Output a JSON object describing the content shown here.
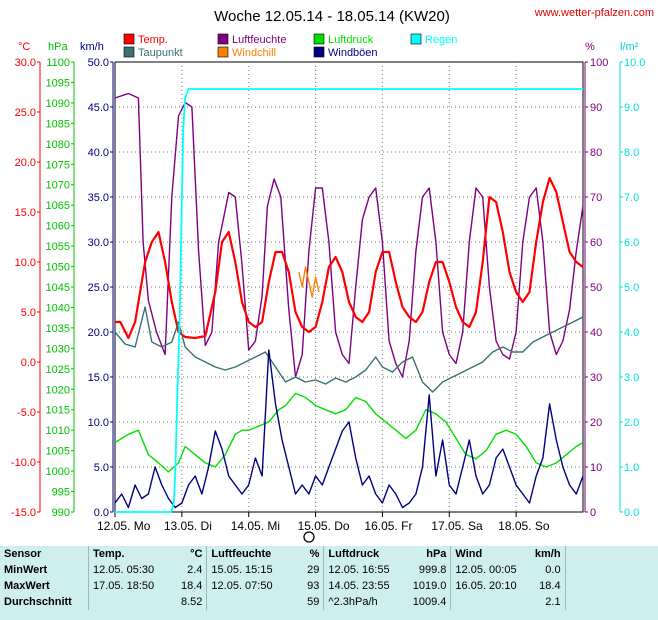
{
  "header": {
    "title": "Woche 12.05.14 - 18.05.14 (KW20)",
    "site": "www.wetter-pfalzen.com"
  },
  "legend": [
    {
      "label": "Temp.",
      "color": "#ff0000"
    },
    {
      "label": "Luftfeuchte",
      "color": "#800080"
    },
    {
      "label": "Luftdruck",
      "color": "#00e000"
    },
    {
      "label": "Regen",
      "color": "#00ffff"
    },
    {
      "label": "Taupunkt",
      "color": "#3a7070"
    },
    {
      "label": "Windchill",
      "color": "#ff8000"
    },
    {
      "label": "Windböen",
      "color": "#000080"
    }
  ],
  "chart_data": {
    "type": "line",
    "units": {
      "temp": "°C",
      "pressure": "hPa",
      "wind": "km/h",
      "humidity": "%",
      "rain": "l/m²"
    },
    "axes": {
      "temp": {
        "min": -15,
        "max": 30,
        "ticks": [
          "30.0",
          "25.0",
          "20.0",
          "15.0",
          "10.0",
          "5.0",
          "0.0",
          "-5.0",
          "-10.0",
          "-15.0"
        ],
        "color": "#ff0000"
      },
      "pressure": {
        "min": 990,
        "max": 1100,
        "ticks": [
          "1100",
          "1095",
          "1090",
          "1085",
          "1080",
          "1075",
          "1070",
          "1065",
          "1060",
          "1055",
          "1050",
          "1045",
          "1040",
          "1035",
          "1030",
          "1025",
          "1020",
          "1015",
          "1010",
          "1005",
          "1000",
          "995",
          "990"
        ],
        "color": "#00c000"
      },
      "wind": {
        "min": 0,
        "max": 50,
        "ticks": [
          "50.0",
          "45.0",
          "40.0",
          "35.0",
          "30.0",
          "25.0",
          "20.0",
          "15.0",
          "10.0",
          "5.0",
          "0.0"
        ],
        "color": "#000080"
      },
      "humidity": {
        "min": 0,
        "max": 100,
        "ticks": [
          "100",
          "90",
          "80",
          "70",
          "60",
          "50",
          "40",
          "30",
          "20",
          "10",
          "0"
        ],
        "color": "#800080"
      },
      "rain": {
        "min": 0,
        "max": 10,
        "ticks": [
          "10.0",
          "9.0",
          "8.0",
          "7.0",
          "6.0",
          "5.0",
          "4.0",
          "3.0",
          "2.0",
          "1.0",
          "0.0"
        ],
        "color": "#00e0e0"
      }
    },
    "x_days": 7,
    "x_labels": [
      "12.05. Mo",
      "13.05. Di",
      "14.05. Mi",
      "15.05. Do",
      "16.05. Fr",
      "17.05. Sa",
      "18.05. So"
    ],
    "series": [
      {
        "name": "Luftfeuchte",
        "axis": "humidity",
        "color": "#800080",
        "t": [
          0,
          0.2,
          0.35,
          0.42,
          0.5,
          0.62,
          0.75,
          0.85,
          0.95,
          1.05,
          1.15,
          1.25,
          1.35,
          1.45,
          1.55,
          1.62,
          1.7,
          1.8,
          1.9,
          2.0,
          2.1,
          2.2,
          2.28,
          2.38,
          2.48,
          2.6,
          2.7,
          2.8,
          2.9,
          3.0,
          3.1,
          3.2,
          3.3,
          3.4,
          3.5,
          3.6,
          3.7,
          3.8,
          3.9,
          4.0,
          4.1,
          4.2,
          4.3,
          4.4,
          4.5,
          4.6,
          4.7,
          4.8,
          4.9,
          5.0,
          5.1,
          5.2,
          5.3,
          5.4,
          5.5,
          5.6,
          5.7,
          5.8,
          5.9,
          6.0,
          6.1,
          6.2,
          6.3,
          6.4,
          6.5,
          6.6,
          6.7,
          6.8,
          6.9,
          7.0
        ],
        "v": [
          92,
          93,
          92,
          60,
          47,
          40,
          35,
          70,
          88,
          91,
          90,
          58,
          37,
          40,
          60,
          65,
          71,
          70,
          55,
          36,
          38,
          48,
          68,
          74,
          70,
          45,
          30,
          35,
          58,
          72,
          72,
          60,
          40,
          35,
          33,
          50,
          65,
          70,
          72,
          60,
          38,
          33,
          30,
          38,
          58,
          70,
          72,
          60,
          40,
          35,
          33,
          40,
          60,
          72,
          70,
          50,
          38,
          35,
          34,
          40,
          60,
          70,
          72,
          60,
          40,
          35,
          38,
          45,
          58,
          68
        ]
      },
      {
        "name": "Temp.",
        "axis": "temp",
        "color": "#ff0000",
        "t": [
          0,
          0.08,
          0.2,
          0.3,
          0.45,
          0.55,
          0.65,
          0.75,
          0.85,
          0.95,
          1.05,
          1.2,
          1.35,
          1.5,
          1.6,
          1.7,
          1.8,
          1.9,
          2.0,
          2.1,
          2.2,
          2.3,
          2.4,
          2.5,
          2.6,
          2.7,
          2.8,
          2.9,
          3.0,
          3.1,
          3.2,
          3.3,
          3.4,
          3.5,
          3.6,
          3.7,
          3.8,
          3.9,
          4.0,
          4.1,
          4.2,
          4.3,
          4.4,
          4.5,
          4.6,
          4.7,
          4.8,
          4.9,
          5.0,
          5.1,
          5.2,
          5.3,
          5.4,
          5.5,
          5.6,
          5.7,
          5.8,
          5.9,
          6.0,
          6.1,
          6.2,
          6.3,
          6.4,
          6.5,
          6.6,
          6.7,
          6.8,
          6.9,
          7.0
        ],
        "v": [
          4.0,
          4.0,
          2.4,
          4.0,
          10,
          12,
          13,
          10,
          6,
          3,
          2.5,
          2.4,
          2.6,
          7,
          12,
          13,
          10,
          6,
          4,
          3.5,
          4,
          8,
          11,
          11,
          9,
          5,
          3.5,
          3,
          3.5,
          6,
          9.5,
          10.5,
          9,
          6,
          4.5,
          4,
          5,
          9,
          11,
          11,
          8,
          5.5,
          4.5,
          4,
          5,
          8,
          10,
          10,
          8,
          5.5,
          4,
          3.5,
          5,
          10,
          16.5,
          16,
          13,
          9,
          7,
          6,
          7,
          12,
          16,
          18.4,
          17,
          14,
          11,
          10,
          9.5
        ]
      },
      {
        "name": "Windchill",
        "axis": "temp",
        "color": "#ff8000",
        "t": [
          2.75,
          2.8,
          2.85,
          2.9,
          2.95,
          3.0,
          3.05
        ],
        "v": [
          9.0,
          7.5,
          9.5,
          8.0,
          6.5,
          8.5,
          7.0
        ]
      },
      {
        "name": "Taupunkt",
        "axis": "temp",
        "color": "#3a7070",
        "t": [
          0,
          0.15,
          0.3,
          0.45,
          0.55,
          0.7,
          0.85,
          0.95,
          1.05,
          1.2,
          1.35,
          1.5,
          1.65,
          1.8,
          1.95,
          2.1,
          2.25,
          2.4,
          2.55,
          2.7,
          2.85,
          3.0,
          3.15,
          3.3,
          3.45,
          3.6,
          3.75,
          3.9,
          4.0,
          4.15,
          4.3,
          4.45,
          4.6,
          4.75,
          4.9,
          5.05,
          5.2,
          5.35,
          5.5,
          5.65,
          5.8,
          5.95,
          6.1,
          6.25,
          6.4,
          6.55,
          6.7,
          6.85,
          7.0
        ],
        "v": [
          3.0,
          1.8,
          1.5,
          5.5,
          2.0,
          1.5,
          2.0,
          4.0,
          1.5,
          0.5,
          0,
          -0.5,
          -0.8,
          -0.5,
          0,
          0.5,
          1.0,
          -0.5,
          -2.0,
          -1.5,
          -2.0,
          -1.8,
          -2.2,
          -1.6,
          -2.0,
          -1.5,
          -0.8,
          0.5,
          -0.5,
          -1.0,
          0,
          0.5,
          -2.0,
          -3.0,
          -2.0,
          -1.5,
          -1.0,
          -0.5,
          0,
          1.0,
          1.5,
          1.0,
          1.0,
          2.0,
          2.5,
          3.0,
          3.5,
          4.0,
          4.5
        ]
      },
      {
        "name": "Luftdruck",
        "axis": "pressure",
        "color": "#00e000",
        "t": [
          0,
          0.2,
          0.35,
          0.5,
          0.65,
          0.8,
          0.95,
          1.05,
          1.2,
          1.35,
          1.5,
          1.65,
          1.8,
          1.9,
          2.0,
          2.15,
          2.3,
          2.45,
          2.55,
          2.7,
          2.85,
          3.0,
          3.15,
          3.3,
          3.45,
          3.6,
          3.75,
          3.9,
          4.05,
          4.2,
          4.35,
          4.5,
          4.65,
          4.8,
          4.95,
          5.1,
          5.25,
          5.4,
          5.55,
          5.7,
          5.85,
          6.0,
          6.15,
          6.3,
          6.45,
          6.6,
          6.75,
          6.9,
          7.0
        ],
        "v": [
          1007,
          1009,
          1010,
          1004,
          1002,
          999.8,
          1002,
          1006,
          1004,
          1002,
          1001,
          1004,
          1009,
          1010,
          1010,
          1011,
          1012,
          1015,
          1016,
          1019,
          1018,
          1016,
          1015,
          1014,
          1015,
          1018,
          1017,
          1014,
          1012,
          1010,
          1008,
          1010,
          1015,
          1014,
          1012,
          1008,
          1004,
          1003,
          1005,
          1009,
          1010,
          1009,
          1006,
          1002,
          1001,
          1002,
          1004,
          1006,
          1007
        ]
      },
      {
        "name": "Windböen",
        "axis": "wind",
        "color": "#000080",
        "t": [
          0,
          0.1,
          0.2,
          0.3,
          0.4,
          0.5,
          0.6,
          0.7,
          0.8,
          0.9,
          1.0,
          1.1,
          1.2,
          1.3,
          1.4,
          1.5,
          1.6,
          1.7,
          1.8,
          1.9,
          2.0,
          2.1,
          2.2,
          2.3,
          2.4,
          2.5,
          2.6,
          2.7,
          2.8,
          2.9,
          3.0,
          3.1,
          3.2,
          3.3,
          3.4,
          3.5,
          3.6,
          3.7,
          3.8,
          3.9,
          4.0,
          4.1,
          4.2,
          4.3,
          4.4,
          4.5,
          4.6,
          4.7,
          4.8,
          4.9,
          5.0,
          5.1,
          5.2,
          5.3,
          5.4,
          5.5,
          5.6,
          5.7,
          5.8,
          5.9,
          6.0,
          6.1,
          6.2,
          6.3,
          6.4,
          6.5,
          6.6,
          6.7,
          6.8,
          6.9,
          7.0
        ],
        "v": [
          1,
          2,
          0.5,
          3,
          1.5,
          2,
          5,
          3,
          1.5,
          0.5,
          1,
          3,
          4,
          2,
          5,
          9,
          7,
          4,
          3,
          2,
          3,
          6,
          4,
          18,
          12,
          8,
          5,
          2,
          3,
          2,
          4,
          3,
          5,
          7,
          9,
          10,
          6,
          3,
          4,
          2,
          1,
          3,
          2,
          0.5,
          1,
          2,
          5,
          13,
          4,
          8,
          3,
          2,
          5,
          8,
          4,
          2,
          3,
          6,
          7,
          5,
          3,
          2,
          1,
          4,
          6,
          12,
          8,
          5,
          3,
          2,
          4
        ]
      },
      {
        "name": "Regen",
        "axis": "rain",
        "color": "#00ffff",
        "t": [
          0,
          0.84,
          0.88,
          0.9,
          0.93,
          0.97,
          1.0,
          1.02,
          1.05,
          1.1,
          7.0
        ],
        "v": [
          0,
          0,
          0.2,
          0.8,
          2.5,
          4.5,
          7.0,
          8.5,
          9.2,
          9.4,
          9.4
        ]
      }
    ]
  },
  "stats": {
    "headers": {
      "sensor": "Sensor",
      "temp": "Temp.",
      "temp_unit": "°C",
      "hum": "Luftfeuchte",
      "hum_unit": "%",
      "press": "Luftdruck",
      "press_unit": "hPa",
      "wind": "Wind",
      "wind_unit": "km/h"
    },
    "rows": [
      {
        "label": "MinWert",
        "temp_time": "12.05.  05:30",
        "temp_val": "2.4",
        "hum_time": "15.05.  15:15",
        "hum_val": "29",
        "press_time": "12.05.  16:55",
        "press_val": "999.8",
        "wind_time": "12.05.  00:05",
        "wind_val": "0.0"
      },
      {
        "label": "MaxWert",
        "temp_time": "17.05.  18:50",
        "temp_val": "18.4",
        "hum_time": "12.05.  07:50",
        "hum_val": "93",
        "press_time": "14.05.  23:55",
        "press_val": "1019.0",
        "wind_time": "16.05.  20:10",
        "wind_val": "18.4"
      },
      {
        "label": "Durchschnitt",
        "temp_time": "",
        "temp_val": "8.52",
        "hum_time": "",
        "hum_val": "59",
        "press_time": "^2.3hPa/h",
        "press_val": "1009.4",
        "wind_time": "",
        "wind_val": "2.1"
      }
    ]
  }
}
